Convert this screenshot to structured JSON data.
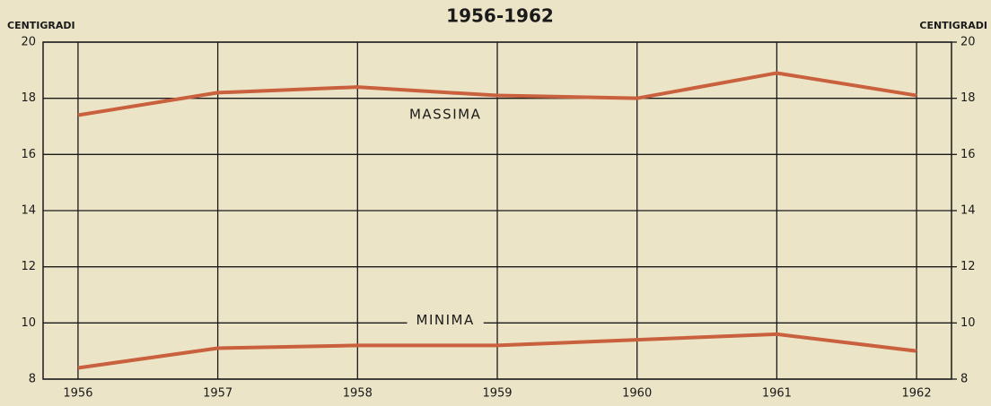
{
  "chart_data": {
    "type": "line",
    "title": "1956-1962",
    "y_label": "CENTIGRADI",
    "y2_label": "CENTIGRADI",
    "x": [
      1956,
      1957,
      1958,
      1959,
      1960,
      1961,
      1962
    ],
    "xlim": [
      1955.75,
      1962.25
    ],
    "xticks": [
      1956,
      1957,
      1958,
      1959,
      1960,
      1961,
      1962
    ],
    "ylim": [
      8,
      20
    ],
    "yticks": [
      8,
      10,
      12,
      14,
      16,
      18,
      20
    ],
    "y2lim": [
      8,
      20
    ],
    "y2ticks": [
      8,
      10,
      12,
      14,
      16,
      18,
      20
    ],
    "grid": true,
    "series": [
      {
        "name": "MASSIMA",
        "color": "#c9603e",
        "values": [
          17.4,
          18.2,
          18.4,
          18.1,
          18.0,
          18.9,
          18.1
        ]
      },
      {
        "name": "MINIMA",
        "color": "#c9603e",
        "values": [
          8.4,
          9.1,
          9.2,
          9.2,
          9.4,
          9.6,
          9.0
        ]
      }
    ]
  }
}
